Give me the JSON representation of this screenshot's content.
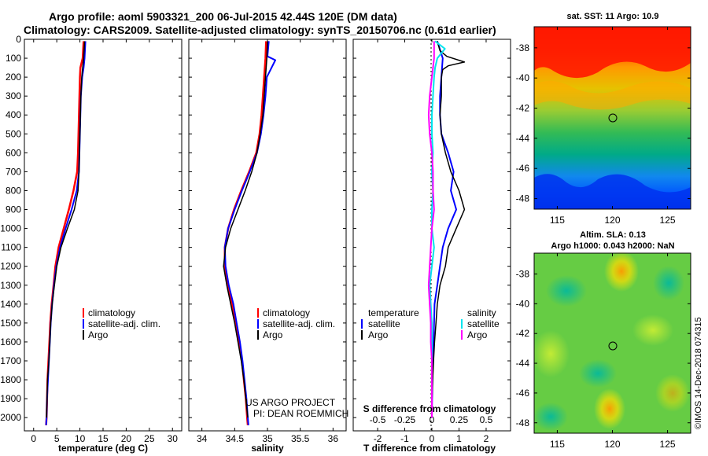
{
  "header": {
    "title_line1": "Argo profile: aoml 5903321_200 06-Jul-2015 42.44S 120E (DM data)",
    "title_line2": "Climatology: CARS2009. Satellite-adjusted climatology: synTS_20150706.nc (0.61d earlier)"
  },
  "colors": {
    "climatology": "#ff0000",
    "satellite": "#0000ff",
    "argo": "#000000",
    "sat_salinity": "#00e5ee",
    "argo_salinity": "#ff00ff"
  },
  "chart_data": [
    {
      "id": "temperature",
      "type": "line",
      "xlabel": "temperature (deg C)",
      "xlim": [
        -2,
        32
      ],
      "ylim": [
        2070,
        0
      ],
      "xticks": [
        0,
        5,
        10,
        15,
        20,
        25,
        30
      ],
      "yticks": [
        0,
        100,
        200,
        300,
        400,
        500,
        600,
        700,
        800,
        900,
        1000,
        1100,
        1200,
        1300,
        1400,
        1500,
        1600,
        1700,
        1800,
        1900,
        2000
      ],
      "legend": [
        "climatology",
        "satellite-adj. clim.",
        "Argo"
      ],
      "series": [
        {
          "name": "climatology",
          "depth": [
            10,
            100,
            150,
            200,
            300,
            400,
            500,
            600,
            700,
            800,
            900,
            1000,
            1100,
            1200,
            1300,
            1400,
            1500,
            1600,
            1700,
            1800,
            1900,
            2000,
            2040
          ],
          "values": [
            10.8,
            10.6,
            10.1,
            10.0,
            9.9,
            9.8,
            9.7,
            9.6,
            9.4,
            8.6,
            7.6,
            6.5,
            5.4,
            4.7,
            4.3,
            3.9,
            3.6,
            3.4,
            3.2,
            3.0,
            2.9,
            2.8,
            2.7
          ]
        },
        {
          "name": "satellite-adj. clim.",
          "depth": [
            10,
            100,
            150,
            200,
            300,
            400,
            500,
            600,
            700,
            800,
            900,
            1000,
            1100,
            1200,
            1300,
            1400,
            1500,
            1600,
            1700,
            1800,
            1900,
            2000,
            2040
          ],
          "values": [
            11.2,
            11.0,
            10.8,
            10.5,
            10.2,
            10.1,
            10.0,
            9.9,
            9.8,
            9.3,
            8.2,
            6.9,
            5.7,
            4.9,
            4.4,
            4.0,
            3.7,
            3.5,
            3.3,
            3.1,
            2.9,
            2.8,
            2.7
          ]
        },
        {
          "name": "Argo",
          "depth": [
            10,
            100,
            150,
            200,
            300,
            400,
            500,
            600,
            700,
            800,
            900,
            1000,
            1100,
            1200,
            1300,
            1400,
            1500,
            1600,
            1700,
            1800,
            1900,
            2000
          ],
          "values": [
            11.0,
            10.8,
            10.6,
            10.4,
            10.2,
            10.1,
            10.0,
            9.9,
            9.8,
            9.6,
            8.8,
            7.3,
            5.9,
            5.0,
            4.5,
            4.0,
            3.7,
            3.5,
            3.3,
            3.0,
            2.9,
            2.8
          ]
        }
      ]
    },
    {
      "id": "salinity",
      "type": "line",
      "xlabel": "salinity",
      "xlim": [
        33.8,
        36.2
      ],
      "ylim": [
        2070,
        0
      ],
      "xticks": [
        34,
        34.5,
        35,
        35.5,
        36
      ],
      "legend": [
        "climatology",
        "satellite-adj. clim.",
        "Argo"
      ],
      "series": [
        {
          "name": "climatology",
          "depth": [
            10,
            100,
            200,
            300,
            400,
            500,
            600,
            700,
            800,
            900,
            1000,
            1100,
            1200,
            1300,
            1400,
            1500,
            1600,
            1700,
            1800,
            1900,
            2000,
            2040
          ],
          "values": [
            34.98,
            34.97,
            34.95,
            34.93,
            34.91,
            34.88,
            34.83,
            34.72,
            34.6,
            34.49,
            34.4,
            34.35,
            34.35,
            34.4,
            34.46,
            34.52,
            34.57,
            34.61,
            34.64,
            34.67,
            34.69,
            34.7
          ]
        },
        {
          "name": "satellite-adj. clim.",
          "depth": [
            10,
            90,
            110,
            200,
            300,
            400,
            500,
            600,
            700,
            800,
            900,
            1000,
            1100,
            1200,
            1300,
            1400,
            1500,
            1600,
            1700,
            1800,
            1900,
            2000,
            2040
          ],
          "values": [
            35.02,
            35.0,
            35.12,
            34.99,
            34.97,
            34.94,
            34.9,
            34.84,
            34.73,
            34.61,
            34.5,
            34.4,
            34.35,
            34.36,
            34.41,
            34.48,
            34.53,
            34.58,
            34.62,
            34.65,
            34.68,
            34.7,
            34.71
          ]
        },
        {
          "name": "Argo",
          "depth": [
            10,
            100,
            200,
            300,
            400,
            500,
            600,
            700,
            800,
            900,
            1000,
            1100,
            1200,
            1300,
            1400,
            1500,
            1600,
            1700,
            1800,
            1900,
            2000
          ],
          "values": [
            35.0,
            34.99,
            34.97,
            34.95,
            34.93,
            34.89,
            34.84,
            34.76,
            34.66,
            34.55,
            34.44,
            34.36,
            34.33,
            34.38,
            34.44,
            34.5,
            34.55,
            34.6,
            34.64,
            34.67,
            34.7
          ]
        }
      ]
    },
    {
      "id": "differences",
      "type": "line",
      "xlabel": "T difference from climatology",
      "secondary_xlabel": "S difference from climatology",
      "xlim": [
        -2.9,
        2.9
      ],
      "ylim": [
        2070,
        0
      ],
      "xticks": [
        -2,
        -1,
        0,
        1,
        2
      ],
      "secondary_xticks": [
        "-0.5",
        "-0.25",
        "0",
        "0.25",
        "0.5"
      ],
      "legend_left_title": "temperature",
      "legend_right_title": "salinity",
      "legend_left": [
        "satellite",
        "Argo"
      ],
      "legend_right": [
        "satellite",
        "Argo"
      ],
      "series": [
        {
          "name": "temperature satellite",
          "depth": [
            10,
            100,
            200,
            300,
            400,
            500,
            600,
            700,
            800,
            900,
            1000,
            1100,
            1200,
            1300,
            1400,
            1500,
            1600,
            1700,
            1800,
            1900,
            2000
          ],
          "values": [
            0.2,
            0.4,
            0.35,
            0.3,
            0.3,
            0.35,
            0.6,
            0.8,
            0.7,
            0.9,
            0.6,
            0.4,
            0.3,
            0.2,
            0.1,
            0.08,
            0.06,
            0.04,
            0.02,
            0.01,
            0.0
          ]
        },
        {
          "name": "temperature Argo",
          "depth": [
            10,
            60,
            90,
            120,
            140,
            160,
            200,
            300,
            400,
            500,
            600,
            700,
            800,
            900,
            1000,
            1100,
            1200,
            1300,
            1400,
            1500,
            1600,
            1700,
            1800,
            1900,
            2000
          ],
          "values": [
            0.2,
            0.3,
            0.55,
            1.2,
            0.6,
            0.4,
            0.35,
            0.35,
            0.3,
            0.35,
            0.5,
            0.7,
            1.0,
            1.2,
            0.9,
            0.6,
            0.5,
            0.3,
            0.2,
            0.15,
            0.1,
            0.06,
            0.03,
            0.01,
            0.0
          ]
        },
        {
          "name": "salinity satellite",
          "depth": [
            10,
            50,
            100,
            150,
            200,
            300,
            400,
            500,
            600,
            700,
            800,
            900,
            1000,
            1100,
            1200,
            1300,
            1400,
            1500,
            1600,
            1700,
            1800,
            1900,
            2000
          ],
          "values": [
            0.03,
            0.12,
            0.05,
            0.03,
            0.02,
            0.01,
            0.0,
            0.0,
            0.01,
            0.0,
            0.01,
            0.0,
            0.0,
            0.02,
            0.0,
            -0.02,
            -0.01,
            0.0,
            0.0,
            0.0,
            0.0,
            0.0,
            0.0
          ]
        },
        {
          "name": "salinity Argo",
          "depth": [
            10,
            100,
            200,
            300,
            400,
            500,
            600,
            700,
            800,
            900,
            1000,
            1100,
            1200,
            1300,
            1400,
            1500,
            1600,
            1700,
            1800,
            1900,
            2000
          ],
          "values": [
            0.02,
            0.02,
            0.0,
            -0.02,
            -0.03,
            -0.02,
            0.0,
            0.01,
            0.01,
            0.02,
            0.0,
            -0.01,
            -0.02,
            -0.03,
            -0.02,
            -0.01,
            -0.01,
            0.0,
            0.0,
            0.0,
            0.0
          ]
        }
      ]
    }
  ],
  "credits": {
    "line1": "US ARGO PROJECT",
    "line2": "PI: DEAN ROEMMICH"
  },
  "maps": {
    "sst_title": "sat. SST: 11 Argo: 10.9",
    "sla_title1": "Altim. SLA: 0.13",
    "sla_title2": "Argo h1000: 0.043 h2000: NaN",
    "lat_ticks": [
      "-38",
      "-40",
      "-42",
      "-44",
      "-46",
      "-48"
    ],
    "lon_ticks": [
      "115",
      "120",
      "125"
    ],
    "argo_lat": -42.44,
    "argo_lon": 120
  },
  "footer": {
    "stamp": "©IMOS 14-Dec-2018 074315"
  }
}
